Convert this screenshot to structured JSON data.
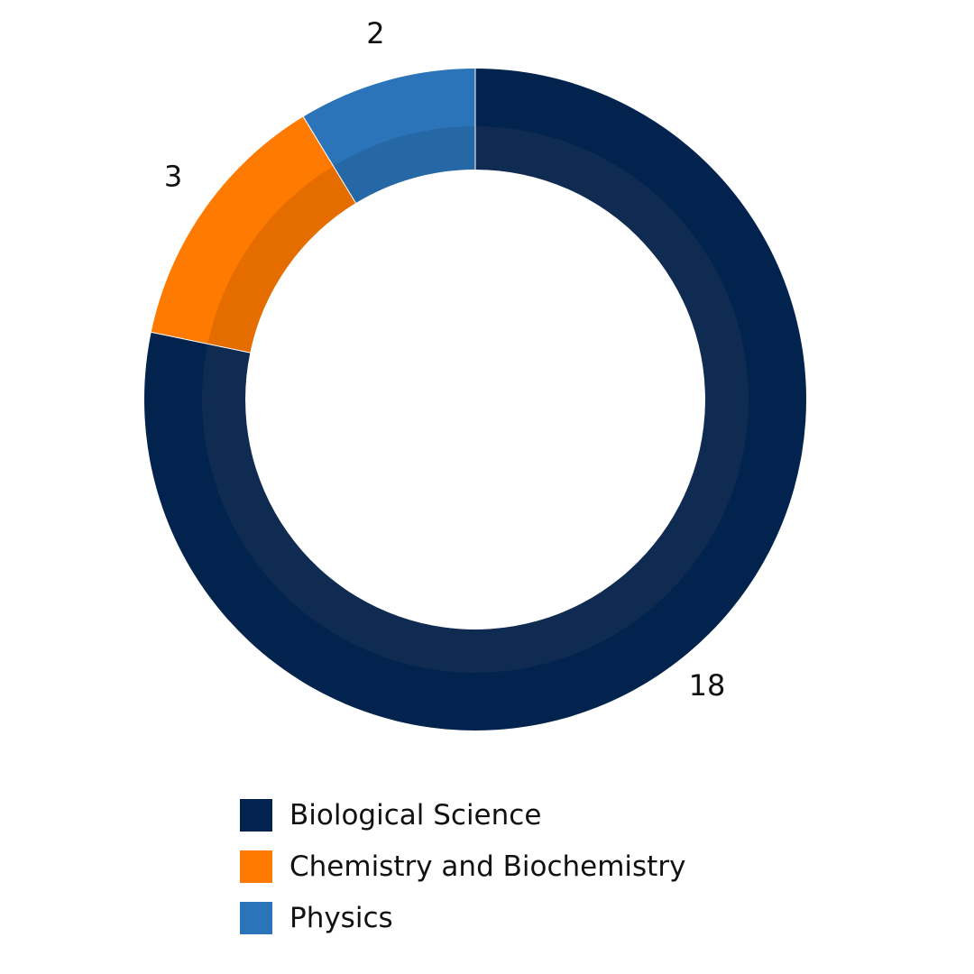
{
  "chart_data": {
    "type": "pie",
    "variant": "donut",
    "categories": [
      "Biological Science",
      "Chemistry and Biochemistry",
      "Physics"
    ],
    "values": [
      18,
      3,
      2
    ],
    "colors": [
      "#02234d",
      "#ff7a00",
      "#2b74b9"
    ],
    "data_labels": [
      "18",
      "3",
      "2"
    ],
    "legend": {
      "placement": "bottom",
      "entries": [
        "Biological Science",
        "Chemistry and Biochemistry",
        "Physics"
      ]
    }
  }
}
